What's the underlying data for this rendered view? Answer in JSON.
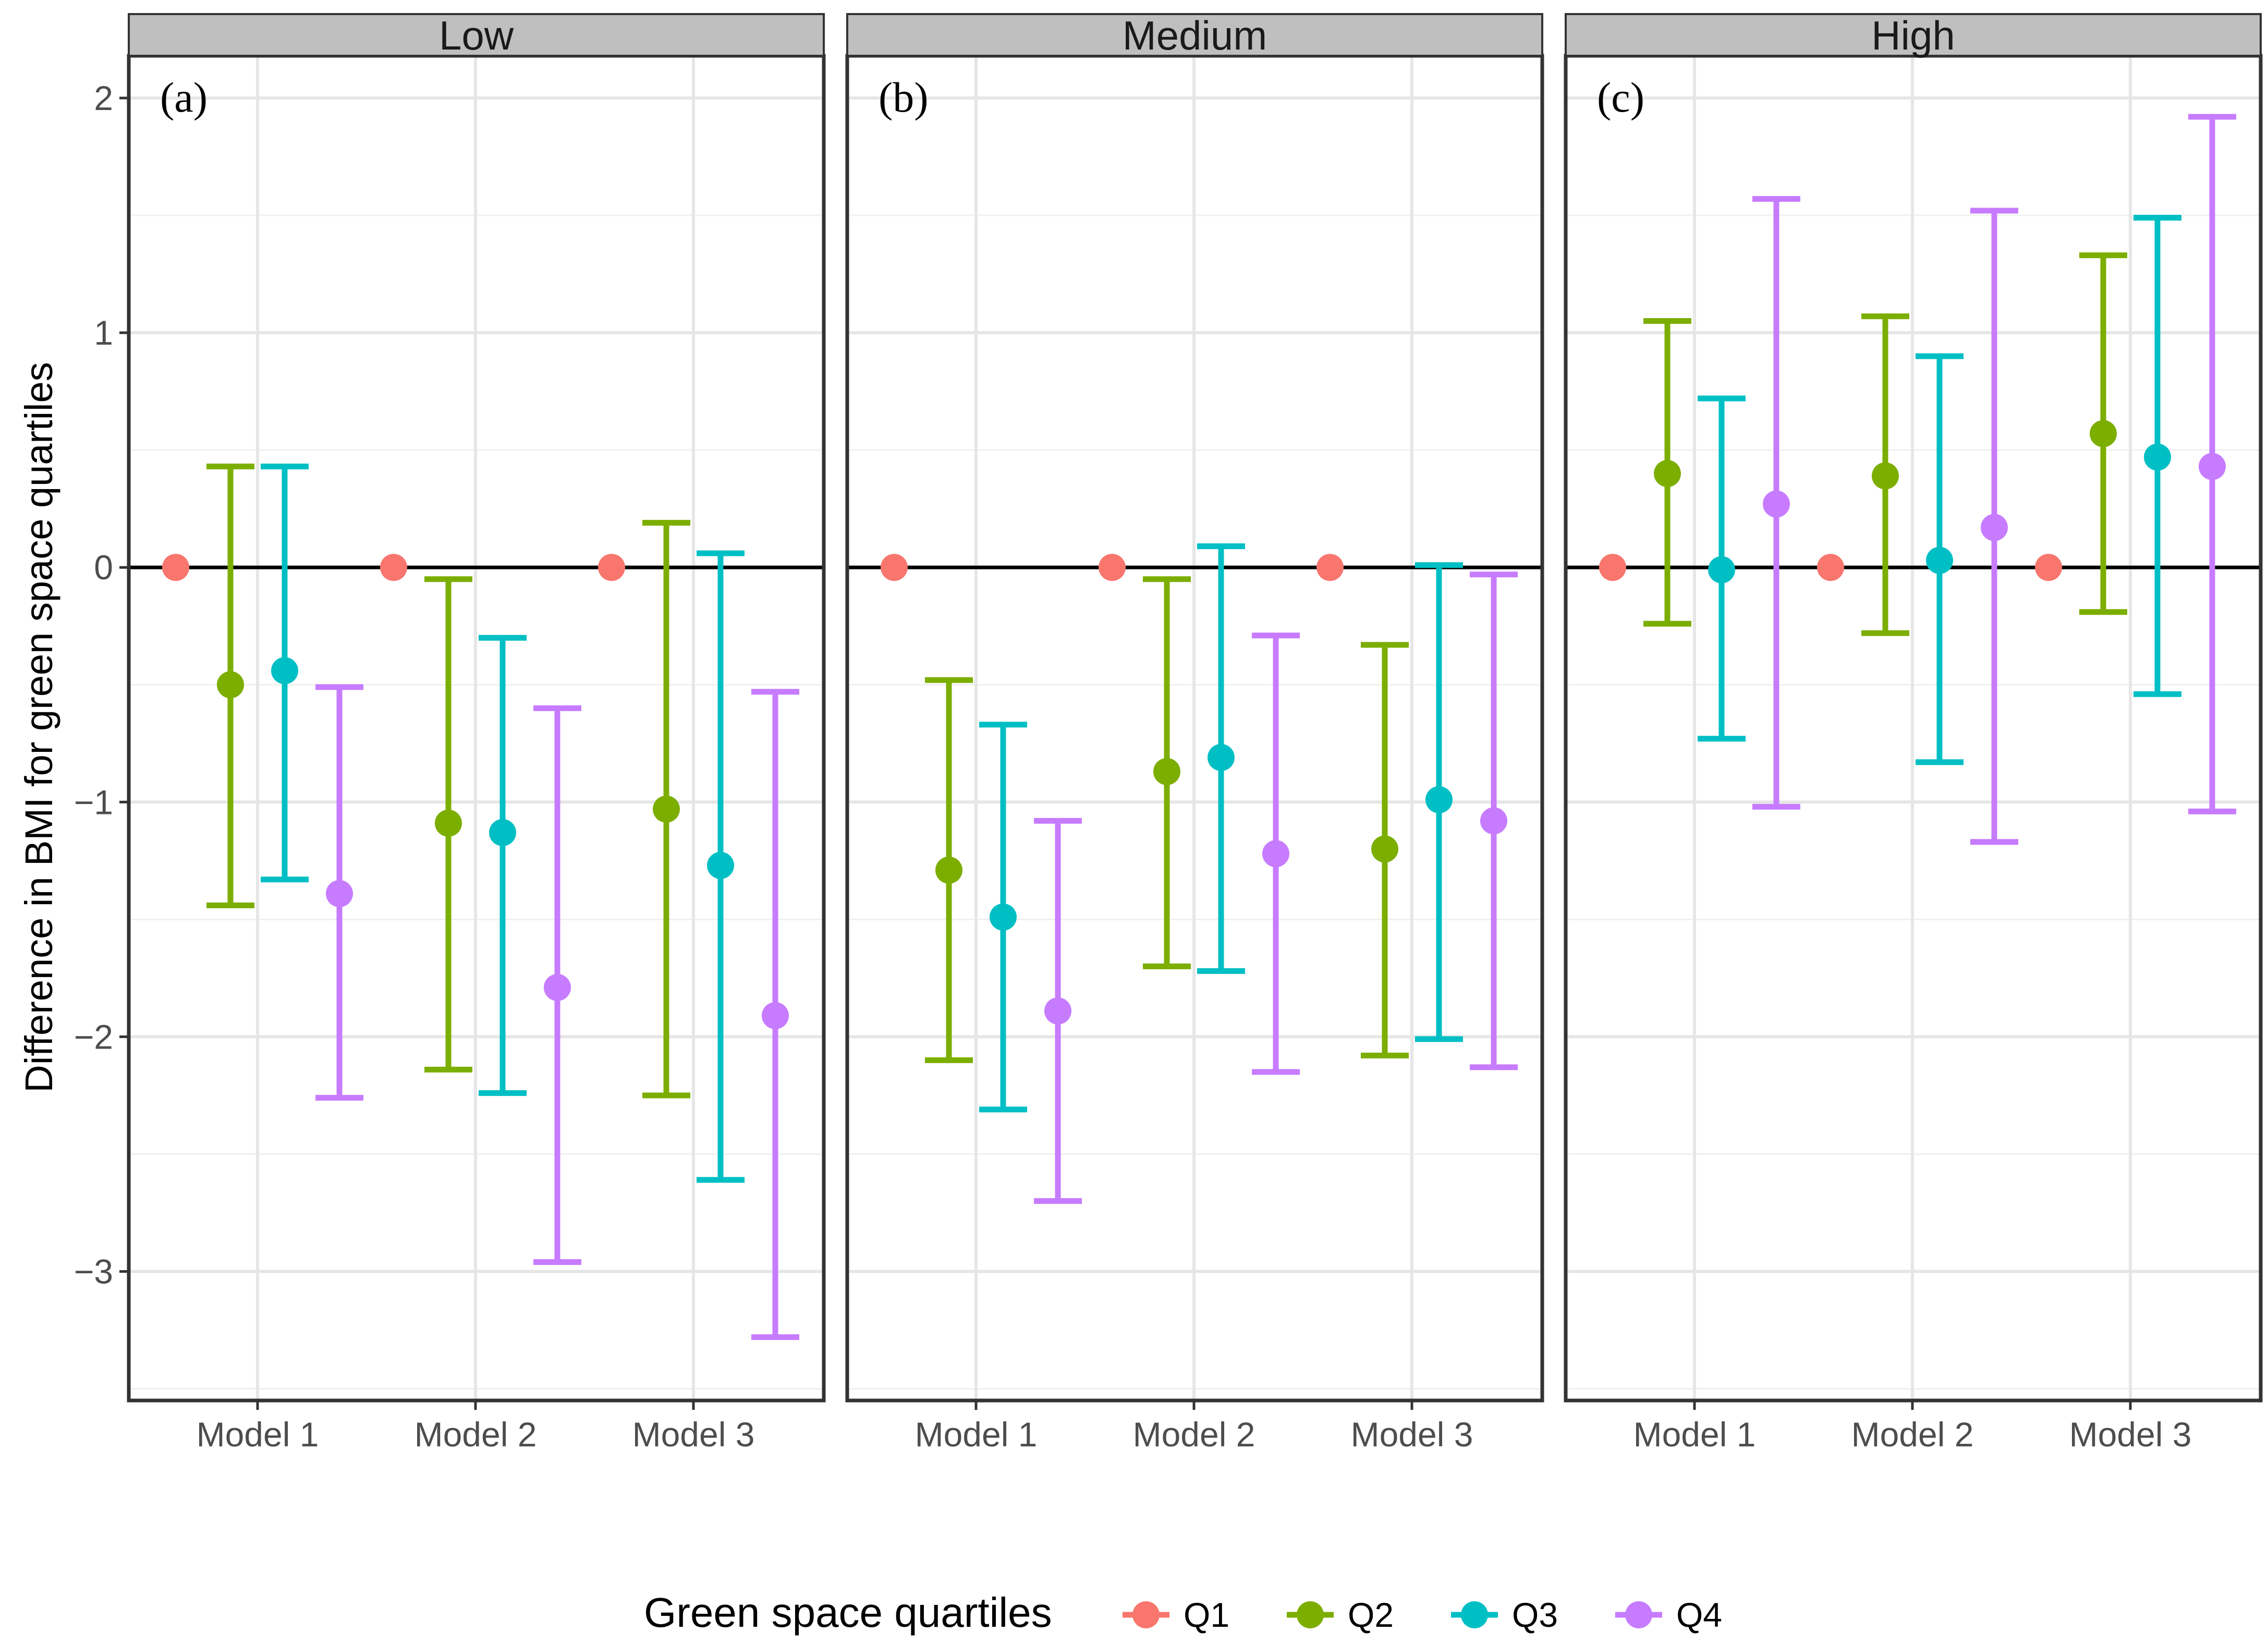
{
  "chart_data": {
    "type": "errorbar",
    "ylabel": "Difference in BMI for green space quartiles",
    "xlabel": "",
    "ylim": [
      -3.55,
      2.18
    ],
    "yticks": [
      -3,
      -2,
      -1,
      0,
      1,
      2
    ],
    "ytick_labels": [
      "−3",
      "−2",
      "−1",
      "0",
      "1",
      "2"
    ],
    "categories": [
      "Model 1",
      "Model 2",
      "Model 3"
    ],
    "reference_line": 0,
    "grid": true,
    "legend": {
      "title": "Green space quartiles",
      "placement": "bottom",
      "entries": [
        {
          "name": "Q1",
          "color": "#F8766D"
        },
        {
          "name": "Q2",
          "color": "#7CAE00"
        },
        {
          "name": "Q3",
          "color": "#00BFC4"
        },
        {
          "name": "Q4",
          "color": "#C77CFF"
        }
      ]
    },
    "panels": [
      {
        "strip": "Low",
        "tag": "(a)",
        "series": [
          {
            "name": "Q1",
            "est": [
              0,
              0,
              0
            ],
            "lo": [
              null,
              null,
              null
            ],
            "hi": [
              null,
              null,
              null
            ]
          },
          {
            "name": "Q2",
            "est": [
              -0.5,
              -1.09,
              -1.03
            ],
            "lo": [
              -1.44,
              -2.14,
              -2.25
            ],
            "hi": [
              0.43,
              -0.05,
              0.19
            ]
          },
          {
            "name": "Q3",
            "est": [
              -0.44,
              -1.13,
              -1.27
            ],
            "lo": [
              -1.33,
              -2.24,
              -2.61
            ],
            "hi": [
              0.43,
              -0.3,
              0.06
            ]
          },
          {
            "name": "Q4",
            "est": [
              -1.39,
              -1.79,
              -1.91
            ],
            "lo": [
              -2.26,
              -2.96,
              -3.28
            ],
            "hi": [
              -0.51,
              -0.6,
              -0.53
            ]
          }
        ]
      },
      {
        "strip": "Medium",
        "tag": "(b)",
        "series": [
          {
            "name": "Q1",
            "est": [
              0,
              0,
              0
            ],
            "lo": [
              null,
              null,
              null
            ],
            "hi": [
              null,
              null,
              null
            ]
          },
          {
            "name": "Q2",
            "est": [
              -1.29,
              -0.87,
              -1.2
            ],
            "lo": [
              -2.1,
              -1.7,
              -2.08
            ],
            "hi": [
              -0.48,
              -0.05,
              -0.33
            ]
          },
          {
            "name": "Q3",
            "est": [
              -1.49,
              -0.81,
              -0.99
            ],
            "lo": [
              -2.31,
              -1.72,
              -2.01
            ],
            "hi": [
              -0.67,
              0.09,
              0.01
            ]
          },
          {
            "name": "Q4",
            "est": [
              -1.89,
              -1.22,
              -1.08
            ],
            "lo": [
              -2.7,
              -2.15,
              -2.13
            ],
            "hi": [
              -1.08,
              -0.29,
              -0.03
            ]
          }
        ]
      },
      {
        "strip": "High",
        "tag": "(c)",
        "series": [
          {
            "name": "Q1",
            "est": [
              0,
              0,
              0
            ],
            "lo": [
              null,
              null,
              null
            ],
            "hi": [
              null,
              null,
              null
            ]
          },
          {
            "name": "Q2",
            "est": [
              0.4,
              0.39,
              0.57
            ],
            "lo": [
              -0.24,
              -0.28,
              -0.19
            ],
            "hi": [
              1.05,
              1.07,
              1.33
            ]
          },
          {
            "name": "Q3",
            "est": [
              -0.01,
              0.03,
              0.47
            ],
            "lo": [
              -0.73,
              -0.83,
              -0.54
            ],
            "hi": [
              0.72,
              0.9,
              1.49
            ]
          },
          {
            "name": "Q4",
            "est": [
              0.27,
              0.17,
              0.43
            ],
            "lo": [
              -1.02,
              -1.17,
              -1.04
            ],
            "hi": [
              1.57,
              1.52,
              1.92
            ]
          }
        ]
      }
    ]
  }
}
